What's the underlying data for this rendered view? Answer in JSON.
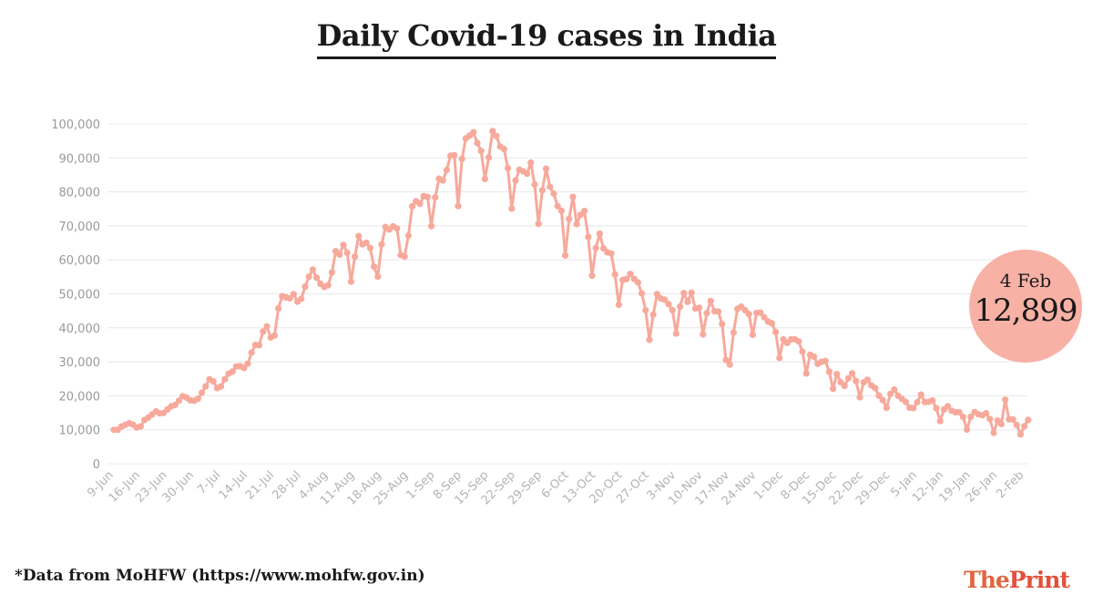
{
  "title": "Daily Covid-19 cases in India",
  "source_note": "*Data from MoHFW (https://www.mohfw.gov.in)",
  "logo": {
    "part1": "The",
    "part2": "Print"
  },
  "callout": {
    "date": "4 Feb",
    "value": "12,899"
  },
  "colors": {
    "line": "#f7a99b",
    "marker": "#f7a99b",
    "badge": "#f8b1a5",
    "logo": "#e2503a"
  },
  "chart_data": {
    "type": "line",
    "start_date": "2020-06-09",
    "title": "Daily Covid-19 cases in India",
    "xlabel": "",
    "ylabel": "",
    "ylim": [
      0,
      100000
    ],
    "y_ticks": [
      0,
      10000,
      20000,
      30000,
      40000,
      50000,
      60000,
      70000,
      80000,
      90000,
      100000
    ],
    "y_tick_labels": [
      "0",
      "10,000",
      "20,000",
      "30,000",
      "40,000",
      "50,000",
      "60,000",
      "70,000",
      "80,000",
      "90,000",
      "100,000"
    ],
    "x_tick_labels": [
      "9-Jun",
      "16-Jun",
      "23-Jun",
      "30-Jun",
      "7-Jul",
      "14-Jul",
      "21-Jul",
      "28-Jul",
      "4-Aug",
      "11-Aug",
      "18-Aug",
      "25-Aug",
      "1-Sep",
      "8-Sep",
      "15-Sep",
      "22-Sep",
      "29-Sep",
      "6-Oct",
      "13-Oct",
      "20-Oct",
      "27-Oct",
      "3-Nov",
      "10-Nov",
      "17-Nov",
      "24-Nov",
      "1-Dec",
      "8-Dec",
      "15-Dec",
      "22-Dec",
      "29-Dec",
      "5-Jan",
      "12-Jan",
      "19-Jan",
      "26-Jan",
      "2-Feb"
    ],
    "grid": true,
    "series": [
      {
        "values": [
          9987,
          9985,
          10956,
          11458,
          11929,
          11502,
          10667,
          10974,
          12881,
          13586,
          14516,
          15413,
          14821,
          14933,
          15968,
          16922,
          17296,
          18552,
          19906,
          19459,
          18653,
          18522,
          19148,
          20903,
          22771,
          24850,
          24248,
          22252,
          22752,
          24879,
          26506,
          27114,
          28637,
          28701,
          28178,
          29429,
          32695,
          34956,
          34884,
          38902,
          40425,
          37148,
          37724,
          45720,
          49310,
          48916,
          48661,
          49931,
          47703,
          48513,
          52123,
          55079,
          57118,
          54736,
          52972,
          52050,
          52509,
          56282,
          62538,
          61537,
          64399,
          62064,
          53601,
          60963,
          66999,
          64553,
          65002,
          63490,
          57981,
          55079,
          64531,
          69652,
          68898,
          69878,
          69239,
          61408,
          60975,
          67151,
          75760,
          77266,
          76472,
          78761,
          78512,
          69921,
          78357,
          83883,
          83341,
          86432,
          90632,
          90802,
          75809,
          89706,
          95735,
          96551,
          97570,
          94372,
          92071,
          83809,
          90123,
          97894,
          96424,
          93337,
          92605,
          86961,
          75083,
          83347,
          86508,
          86052,
          85362,
          88600,
          82170,
          70589,
          80472,
          86821,
          81484,
          79476,
          75829,
          74442,
          61267,
          72049,
          78524,
          70496,
          73272,
          74383,
          66732,
          55342,
          63509,
          67708,
          63371,
          62212,
          61871,
          55722,
          46790,
          54044,
          54350,
          55838,
          54366,
          53370,
          50129,
          45149,
          36469,
          43893,
          49881,
          48648,
          48268,
          46963,
          45230,
          38310,
          46253,
          50209,
          47638,
          50356,
          45674,
          45903,
          38074,
          44281,
          47905,
          44878,
          44739,
          41100,
          30548,
          29164,
          38617,
          45576,
          46232,
          45209,
          44059,
          37975,
          44376,
          44489,
          43082,
          41810,
          41322,
          38772,
          31118,
          36604,
          35551,
          36595,
          36652,
          36011,
          32981,
          26567,
          32080,
          31521,
          29398,
          30006,
          30254,
          27071,
          22065,
          26382,
          24010,
          22890,
          25153,
          26624,
          24337,
          19556,
          23950,
          24712,
          23067,
          22272,
          20021,
          18732,
          16432,
          20550,
          21822,
          20036,
          19079,
          18177,
          16504,
          16375,
          18088,
          20346,
          18139,
          18222,
          18645,
          16311,
          12584,
          15968,
          16946,
          15590,
          15158,
          15144,
          13788,
          10064,
          13823,
          15223,
          14545,
          14256,
          14849,
          13203,
          9102,
          12689,
          11666,
          18855,
          13083,
          13052,
          11427,
          8635,
          11039,
          12899
        ]
      }
    ]
  }
}
